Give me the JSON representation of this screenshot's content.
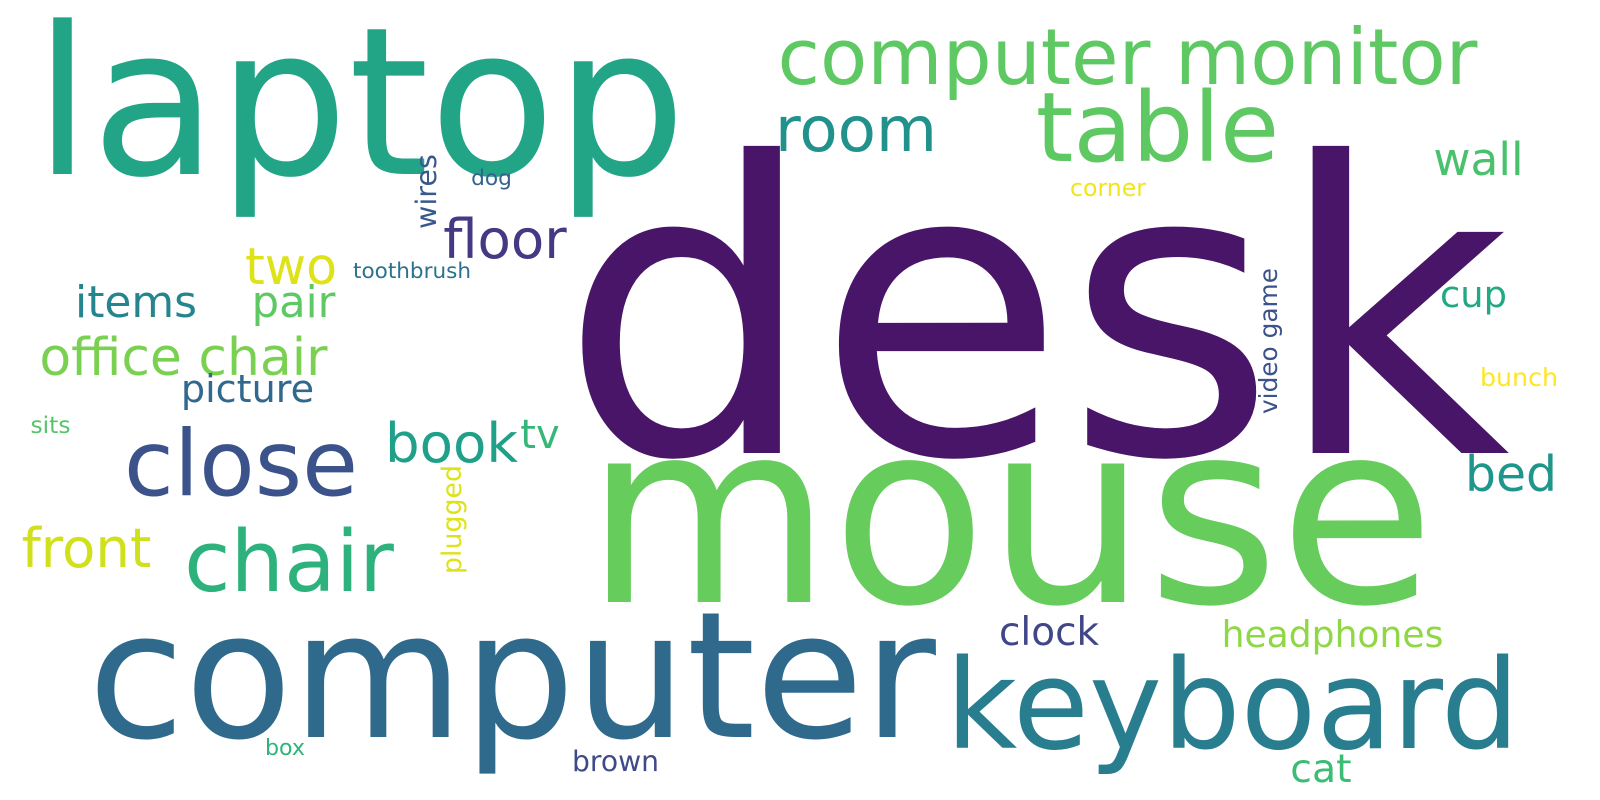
{
  "words": [
    {
      "text": "desk",
      "color": "#481568",
      "vertical": false
    },
    {
      "text": "mouse",
      "color": "#66cc5c",
      "vertical": false
    },
    {
      "text": "computer",
      "color": "#2f6a8d",
      "vertical": false
    },
    {
      "text": "laptop",
      "color": "#22a587",
      "vertical": false
    },
    {
      "text": "keyboard",
      "color": "#287d8e",
      "vertical": false
    },
    {
      "text": "computer monitor",
      "color": "#5ec962",
      "vertical": false
    },
    {
      "text": "table",
      "color": "#5ec962",
      "vertical": false
    },
    {
      "text": "room",
      "color": "#21918c",
      "vertical": false
    },
    {
      "text": "close",
      "color": "#3b528b",
      "vertical": false
    },
    {
      "text": "chair",
      "color": "#2db27d",
      "vertical": false
    },
    {
      "text": "book",
      "color": "#1fa088",
      "vertical": false
    },
    {
      "text": "floor",
      "color": "#443983",
      "vertical": false
    },
    {
      "text": "bed",
      "color": "#1f968b",
      "vertical": false
    },
    {
      "text": "office chair",
      "color": "#7ad151",
      "vertical": false
    },
    {
      "text": "pair",
      "color": "#5ec962",
      "vertical": false
    },
    {
      "text": "two",
      "color": "#dde318",
      "vertical": false
    },
    {
      "text": "front",
      "color": "#d0e11c",
      "vertical": false
    },
    {
      "text": "picture",
      "color": "#31688e",
      "vertical": false
    },
    {
      "text": "items",
      "color": "#25858e",
      "vertical": false
    },
    {
      "text": "headphones",
      "color": "#8fd744",
      "vertical": false
    },
    {
      "text": "wall",
      "color": "#4ac16d",
      "vertical": false
    },
    {
      "text": "cup",
      "color": "#22a884",
      "vertical": false
    },
    {
      "text": "clock",
      "color": "#404688",
      "vertical": false
    },
    {
      "text": "tv",
      "color": "#35b779",
      "vertical": false
    },
    {
      "text": "cat",
      "color": "#3dbc74",
      "vertical": false
    },
    {
      "text": "brown",
      "color": "#3e4a89",
      "vertical": false
    },
    {
      "text": "video game",
      "color": "#3b528b",
      "vertical": true
    },
    {
      "text": "plugged",
      "color": "#dde318",
      "vertical": true
    },
    {
      "text": "wires",
      "color": "#38598c",
      "vertical": true
    },
    {
      "text": "dog",
      "color": "#34618d",
      "vertical": false
    },
    {
      "text": "toothbrush",
      "color": "#2c728e",
      "vertical": false
    },
    {
      "text": "corner",
      "color": "#f1e51d",
      "vertical": false
    },
    {
      "text": "bunch",
      "color": "#fde725",
      "vertical": false
    },
    {
      "text": "sits",
      "color": "#54c568",
      "vertical": false
    },
    {
      "text": "box",
      "color": "#2fb47c",
      "vertical": false
    }
  ]
}
